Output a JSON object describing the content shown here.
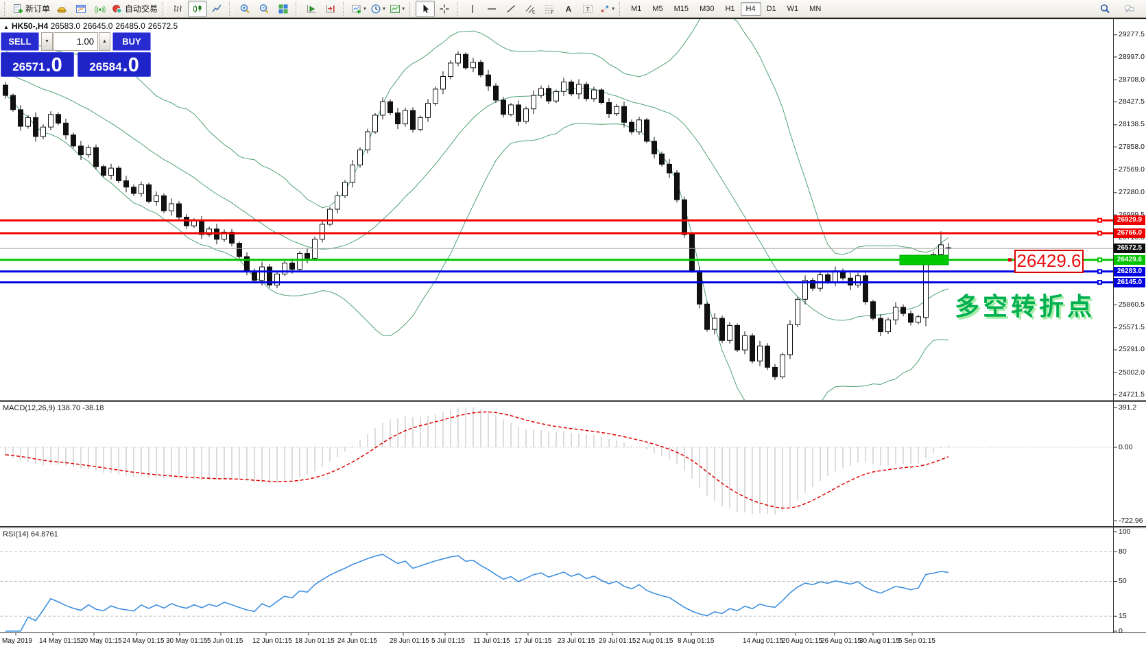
{
  "toolbar": {
    "buttons": [
      {
        "name": "new-order",
        "icon": "docplus",
        "label": "新订单"
      },
      {
        "name": "market-quote",
        "icon": "gold"
      },
      {
        "name": "chart-window",
        "icon": "window"
      },
      {
        "name": "signal",
        "icon": "signal"
      },
      {
        "name": "auto-trading",
        "icon": "autotrade",
        "label": "自动交易"
      },
      {
        "sep": true
      },
      {
        "name": "bar-chart-mode",
        "icon": "bars"
      },
      {
        "name": "candlestick-mode",
        "icon": "candles",
        "active": true
      },
      {
        "name": "line-chart-mode",
        "icon": "line"
      },
      {
        "sep": true
      },
      {
        "name": "zoom-in",
        "icon": "zoomin"
      },
      {
        "name": "zoom-out",
        "icon": "zoomout"
      },
      {
        "name": "tile-windows",
        "icon": "tile"
      },
      {
        "sep": true
      },
      {
        "name": "auto-scroll",
        "icon": "autoscroll"
      },
      {
        "name": "chart-shift",
        "icon": "shift"
      },
      {
        "sep": true
      },
      {
        "name": "indicators",
        "icon": "ind",
        "dropdown": true
      },
      {
        "name": "periods",
        "icon": "clock",
        "dropdown": true
      },
      {
        "name": "templates",
        "icon": "template",
        "dropdown": true
      },
      {
        "sep": true
      },
      {
        "name": "cursor",
        "icon": "cursor",
        "active": true
      },
      {
        "name": "crosshair",
        "icon": "crosshair"
      },
      {
        "sep": true
      },
      {
        "name": "vertical-line",
        "icon": "vline"
      },
      {
        "name": "horizontal-line",
        "icon": "hline"
      },
      {
        "name": "trendline",
        "icon": "trend"
      },
      {
        "name": "equidistant-channel",
        "icon": "channel"
      },
      {
        "name": "fibonacci",
        "icon": "fibo"
      },
      {
        "name": "text",
        "icon": "textA"
      },
      {
        "name": "text-label",
        "icon": "labelT"
      },
      {
        "name": "arrow-objects",
        "icon": "arrows",
        "dropdown": true
      },
      {
        "sep": true
      }
    ],
    "timeframes": [
      "M1",
      "M5",
      "M15",
      "M30",
      "H1",
      "H4",
      "D1",
      "W1",
      "MN"
    ],
    "active_timeframe": "H4"
  },
  "chart": {
    "symbol_period": "HK50-,H4",
    "open": "26583.0",
    "high": "26645.0",
    "low": "26485.0",
    "close": "26572.5"
  },
  "trade_panel": {
    "sell_label": "SELL",
    "buy_label": "BUY",
    "volume": "1.00",
    "sell_price_main": "26571",
    "sell_price_frac": ".0",
    "buy_price_main": "26584",
    "buy_price_frac": ".0"
  },
  "price_axis": {
    "ticks": [
      29277.5,
      28997.0,
      28708.0,
      28427.5,
      28138.5,
      27858.0,
      27569.0,
      27280.0,
      26999.5,
      26710.5,
      25860.5,
      25571.5,
      25291.0,
      25002.0,
      24721.5
    ]
  },
  "hlines": [
    {
      "value": 26929.9,
      "label": "26929.9",
      "color": "#f00000"
    },
    {
      "value": 26766.0,
      "label": "26766.0",
      "color": "#f00000"
    },
    {
      "value": 26429.6,
      "label": "26429.6",
      "color": "#00c400"
    },
    {
      "value": 26283.0,
      "label": "26283.0",
      "color": "#0000e0"
    },
    {
      "value": 26145.0,
      "label": "26145.0",
      "color": "#0000e0"
    }
  ],
  "current_price": {
    "value": 26572.5,
    "label": "26572.5",
    "line_color": "#a8a8a8",
    "badge_color": "#0d0d0d"
  },
  "annotations": {
    "price_label": {
      "text": "26429.6",
      "color": "#e81010"
    },
    "note": {
      "text": "多空转折点",
      "color": "#00b050"
    },
    "highlight_box": {
      "color": "#00cc00",
      "value": 26429.6
    }
  },
  "bands": {
    "color": "#4da273",
    "period": 20,
    "deviation": 2
  },
  "warmup_closes": [
    29050,
    29025,
    29000,
    28975,
    28950,
    28925,
    28900,
    28875,
    28850,
    28825,
    28800,
    28775,
    28750,
    28725,
    28700,
    28680,
    28665,
    28655,
    28648,
    28644
  ],
  "candles": [
    [
      28640,
      28680,
      28470,
      28510
    ],
    [
      28510,
      28535,
      28305,
      28330
    ],
    [
      28330,
      28385,
      28065,
      28120
    ],
    [
      28120,
      28260,
      28090,
      28230
    ],
    [
      28230,
      28295,
      27925,
      27990
    ],
    [
      27990,
      28145,
      27955,
      28110
    ],
    [
      28110,
      28310,
      28070,
      28270
    ],
    [
      28270,
      28295,
      28135,
      28160
    ],
    [
      28160,
      28215,
      27955,
      28010
    ],
    [
      28010,
      28040,
      27840,
      27870
    ],
    [
      27870,
      27935,
      27695,
      27760
    ],
    [
      27760,
      27885,
      27725,
      27850
    ],
    [
      27850,
      27890,
      27570,
      27610
    ],
    [
      27610,
      27635,
      27475,
      27500
    ],
    [
      27500,
      27645,
      27445,
      27590
    ],
    [
      27590,
      27620,
      27400,
      27430
    ],
    [
      27430,
      27495,
      27285,
      27350
    ],
    [
      27350,
      27385,
      27235,
      27270
    ],
    [
      27270,
      27420,
      27230,
      27380
    ],
    [
      27380,
      27405,
      27145,
      27170
    ],
    [
      27170,
      27295,
      27115,
      27240
    ],
    [
      27240,
      27270,
      27020,
      27050
    ],
    [
      27050,
      27205,
      26985,
      27140
    ],
    [
      27140,
      27175,
      26935,
      26970
    ],
    [
      26970,
      27010,
      26820,
      26860
    ],
    [
      26860,
      26955,
      26835,
      26930
    ],
    [
      26930,
      26985,
      26695,
      26750
    ],
    [
      26750,
      26850,
      26720,
      26820
    ],
    [
      26820,
      26885,
      26625,
      26690
    ],
    [
      26690,
      26815,
      26655,
      26780
    ],
    [
      26780,
      26820,
      26600,
      26640
    ],
    [
      26640,
      26665,
      26445,
      26470
    ],
    [
      26470,
      26525,
      26235,
      26290
    ],
    [
      26290,
      26320,
      26140,
      26170
    ],
    [
      26170,
      26405,
      26105,
      26340
    ],
    [
      26340,
      26375,
      26075,
      26110
    ],
    [
      26110,
      26290,
      26070,
      26250
    ],
    [
      26250,
      26415,
      26225,
      26390
    ],
    [
      26390,
      26445,
      26255,
      26310
    ],
    [
      26310,
      26540,
      26280,
      26510
    ],
    [
      26510,
      26575,
      26385,
      26450
    ],
    [
      26450,
      26725,
      26415,
      26690
    ],
    [
      26690,
      26920,
      26650,
      26880
    ],
    [
      26880,
      27095,
      26855,
      27070
    ],
    [
      27070,
      27295,
      27015,
      27240
    ],
    [
      27240,
      27440,
      27210,
      27410
    ],
    [
      27410,
      27695,
      27345,
      27630
    ],
    [
      27630,
      27855,
      27595,
      27820
    ],
    [
      27820,
      28090,
      27780,
      28050
    ],
    [
      28050,
      28285,
      28025,
      28260
    ],
    [
      28260,
      28485,
      28205,
      28430
    ],
    [
      28430,
      28460,
      28260,
      28290
    ],
    [
      28290,
      28355,
      28085,
      28150
    ],
    [
      28150,
      28355,
      28115,
      28320
    ],
    [
      28320,
      28360,
      28040,
      28080
    ],
    [
      28080,
      28255,
      28055,
      28230
    ],
    [
      28230,
      28465,
      28175,
      28410
    ],
    [
      28410,
      28620,
      28380,
      28590
    ],
    [
      28590,
      28815,
      28525,
      28750
    ],
    [
      28750,
      28955,
      28715,
      28920
    ],
    [
      28920,
      29070,
      28880,
      29030
    ],
    [
      29030,
      29055,
      28835,
      28860
    ],
    [
      28860,
      28985,
      28805,
      28930
    ],
    [
      28930,
      28960,
      28740,
      28770
    ],
    [
      28770,
      28835,
      28565,
      28630
    ],
    [
      28630,
      28665,
      28415,
      28450
    ],
    [
      28450,
      28490,
      28230,
      28270
    ],
    [
      28270,
      28415,
      28245,
      28390
    ],
    [
      28390,
      28445,
      28125,
      28180
    ],
    [
      28180,
      28370,
      28150,
      28340
    ],
    [
      28340,
      28575,
      28275,
      28510
    ],
    [
      28510,
      28635,
      28475,
      28600
    ],
    [
      28600,
      28640,
      28400,
      28440
    ],
    [
      28440,
      28585,
      28415,
      28560
    ],
    [
      28560,
      28735,
      28505,
      28680
    ],
    [
      28680,
      28710,
      28500,
      28530
    ],
    [
      28530,
      28715,
      28465,
      28650
    ],
    [
      28650,
      28685,
      28435,
      28470
    ],
    [
      28470,
      28620,
      28430,
      28580
    ],
    [
      28580,
      28605,
      28395,
      28420
    ],
    [
      28420,
      28475,
      28225,
      28280
    ],
    [
      28280,
      28400,
      28250,
      28370
    ],
    [
      28370,
      28435,
      28105,
      28170
    ],
    [
      28170,
      28205,
      28015,
      28050
    ],
    [
      28050,
      28240,
      28010,
      28200
    ],
    [
      28200,
      28225,
      27905,
      27930
    ],
    [
      27930,
      27985,
      27715,
      27770
    ],
    [
      27770,
      27800,
      27610,
      27640
    ],
    [
      27640,
      27705,
      27465,
      27530
    ],
    [
      27530,
      27565,
      27155,
      27190
    ],
    [
      27190,
      27230,
      26710,
      26750
    ],
    [
      26750,
      26775,
      26265,
      26290
    ],
    [
      26290,
      26345,
      25815,
      25870
    ],
    [
      25870,
      25900,
      25520,
      25550
    ],
    [
      25550,
      25755,
      25485,
      25690
    ],
    [
      25690,
      25725,
      25375,
      25410
    ],
    [
      25410,
      25640,
      25370,
      25600
    ],
    [
      25600,
      25625,
      25265,
      25290
    ],
    [
      25290,
      25525,
      25235,
      25470
    ],
    [
      25470,
      25500,
      25120,
      25150
    ],
    [
      25150,
      25405,
      25085,
      25340
    ],
    [
      25340,
      25375,
      25035,
      25070
    ],
    [
      25070,
      25110,
      24910,
      24950
    ],
    [
      24950,
      25255,
      24925,
      25230
    ],
    [
      25230,
      25665,
      25175,
      25610
    ],
    [
      25610,
      25960,
      25580,
      25930
    ],
    [
      25930,
      26235,
      25865,
      26170
    ],
    [
      26170,
      26205,
      26035,
      26070
    ],
    [
      26070,
      26280,
      26030,
      26240
    ],
    [
      26240,
      26265,
      26125,
      26150
    ],
    [
      26150,
      26345,
      26095,
      26290
    ],
    [
      26290,
      26320,
      26170,
      26200
    ],
    [
      26200,
      26265,
      26045,
      26110
    ],
    [
      26110,
      26265,
      26075,
      26230
    ],
    [
      26230,
      26270,
      25860,
      25900
    ],
    [
      25900,
      25925,
      25665,
      25690
    ],
    [
      25690,
      25745,
      25465,
      25520
    ],
    [
      25520,
      25700,
      25490,
      25670
    ],
    [
      25670,
      25895,
      25605,
      25830
    ],
    [
      25830,
      25865,
      25715,
      25750
    ],
    [
      25750,
      25790,
      25600,
      25640
    ],
    [
      25640,
      25735,
      25615,
      25710
    ],
    [
      25700,
      26465,
      25590,
      26420
    ],
    [
      26420,
      26530,
      26390,
      26500
    ],
    [
      26500,
      26790,
      26470,
      26620
    ],
    [
      26583,
      26645,
      26485,
      26573
    ]
  ],
  "macd": {
    "title": "MACD(12,26,9)",
    "values": "138.70 -38.18",
    "axis_top": "391.2",
    "axis_zero": "0.00",
    "axis_bottom": "-722.96",
    "hist_color": "#b9b9b9",
    "signal_color": "#e00000"
  },
  "rsi": {
    "title": "RSI(14)",
    "value": "64.8761",
    "axis": [
      100,
      80,
      50,
      15,
      0
    ],
    "levels": [
      80,
      50,
      15
    ],
    "line_color": "#3d8fe0"
  },
  "time_axis": {
    "labels": [
      "May 2019",
      "14 May 01:15",
      "20 May 01:15",
      "24 May 01:15",
      "30 May 01:15",
      "5 Jun 01:15",
      "12 Jun 01:15",
      "18 Jun 01:15",
      "24 Jun 01:15",
      "28 Jun 01:15",
      "5 Jul 01:15",
      "11 Jul 01:15",
      "17 Jul 01:15",
      "23 Jul 01:15",
      "29 Jul 01:15",
      "2 Aug 01:15",
      "8 Aug 01:15",
      "14 Aug 01:15",
      "20 Aug 01:15",
      "26 Aug 01:15",
      "30 Aug 01:15",
      "5 Sep 01:15"
    ],
    "x": [
      3,
      57,
      117,
      179,
      242,
      302,
      368,
      430,
      492,
      568,
      629,
      690,
      750,
      813,
      873,
      928,
      988,
      1083,
      1140,
      1197,
      1253,
      1310
    ]
  }
}
